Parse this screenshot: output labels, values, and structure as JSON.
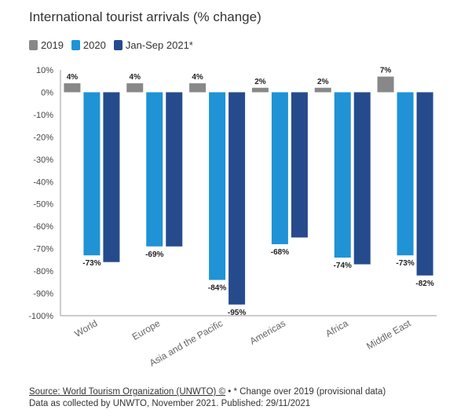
{
  "chart_data": {
    "type": "bar",
    "title": "International tourist arrivals (% change)",
    "categories": [
      "World",
      "Europe",
      "Asia and the Pacific",
      "Americas",
      "Africa",
      "Middle East"
    ],
    "series": [
      {
        "name": "2019",
        "color": "#888888",
        "values": [
          4,
          4,
          4,
          2,
          2,
          7
        ],
        "labels": [
          "4%",
          "4%",
          "4%",
          "2%",
          "2%",
          "7%"
        ]
      },
      {
        "name": "2020",
        "color": "#1f93d6",
        "values": [
          -73,
          -69,
          -84,
          -68,
          -74,
          -73
        ],
        "labels": [
          "-73%",
          "-69%",
          "-84%",
          "-68%",
          "-74%",
          "-73%"
        ]
      },
      {
        "name": "Jan-Sep 2021*",
        "color": "#264b8d",
        "values": [
          -76,
          -69,
          -95,
          -65,
          -77,
          -82
        ],
        "labels": [
          "",
          "",
          "-95%",
          "",
          "",
          "-82%"
        ]
      }
    ],
    "ylim": [
      -100,
      10
    ],
    "yticks": [
      10,
      0,
      -10,
      -20,
      -30,
      -40,
      -50,
      -60,
      -70,
      -80,
      -90,
      -100
    ],
    "ytick_labels": [
      "10%",
      "0%",
      "-10%",
      "-20%",
      "-30%",
      "-40%",
      "-50%",
      "-60%",
      "-70%",
      "-80%",
      "-90%",
      "-100%"
    ],
    "grid": false,
    "legend_position": "top-left"
  },
  "footer": {
    "source_link": "Source: World Tourism Organization (UNWTO) ©",
    "source_note": " • * Change over 2019 (provisional data)",
    "line2": "Data as collected by UNWTO, November 2021. Published: 29/11/2021"
  }
}
